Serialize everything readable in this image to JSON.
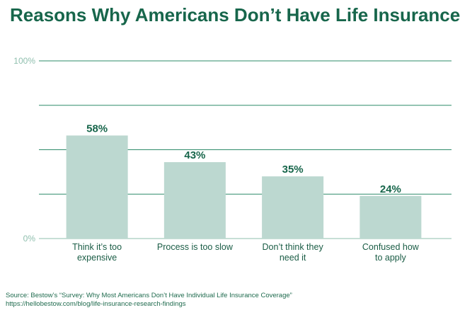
{
  "title": "Reasons Why Americans Don’t Have Life Insurance",
  "colors": {
    "title": "#17664b",
    "bar": "#bcd8d0",
    "grid": "#2e8b6a",
    "text": "#17664b",
    "axis": "#8fbfae"
  },
  "chart_data": {
    "type": "bar",
    "title": "Reasons Why Americans Don’t Have Life Insurance",
    "categories": [
      [
        "Think it’s too",
        "expensive"
      ],
      [
        "Process is too slow"
      ],
      [
        "Don’t think they",
        "need it"
      ],
      [
        "Confused how",
        "to apply"
      ]
    ],
    "values": [
      58,
      43,
      35,
      24
    ],
    "value_labels": [
      "58%",
      "43%",
      "35%",
      "24%"
    ],
    "ylim": [
      0,
      100
    ],
    "ytick_labels": {
      "0": "0%",
      "100": "100%"
    },
    "gridlines": [
      0,
      25,
      50,
      75,
      100
    ],
    "xlabel": "",
    "ylabel": ""
  },
  "source": {
    "line1": "Source: Bestow’s “Survey: Why Most Americans Don’t Have Individual Life Insurance Coverage”",
    "line2": "https://hellobestow.com/blog/life-insurance-research-findings"
  }
}
